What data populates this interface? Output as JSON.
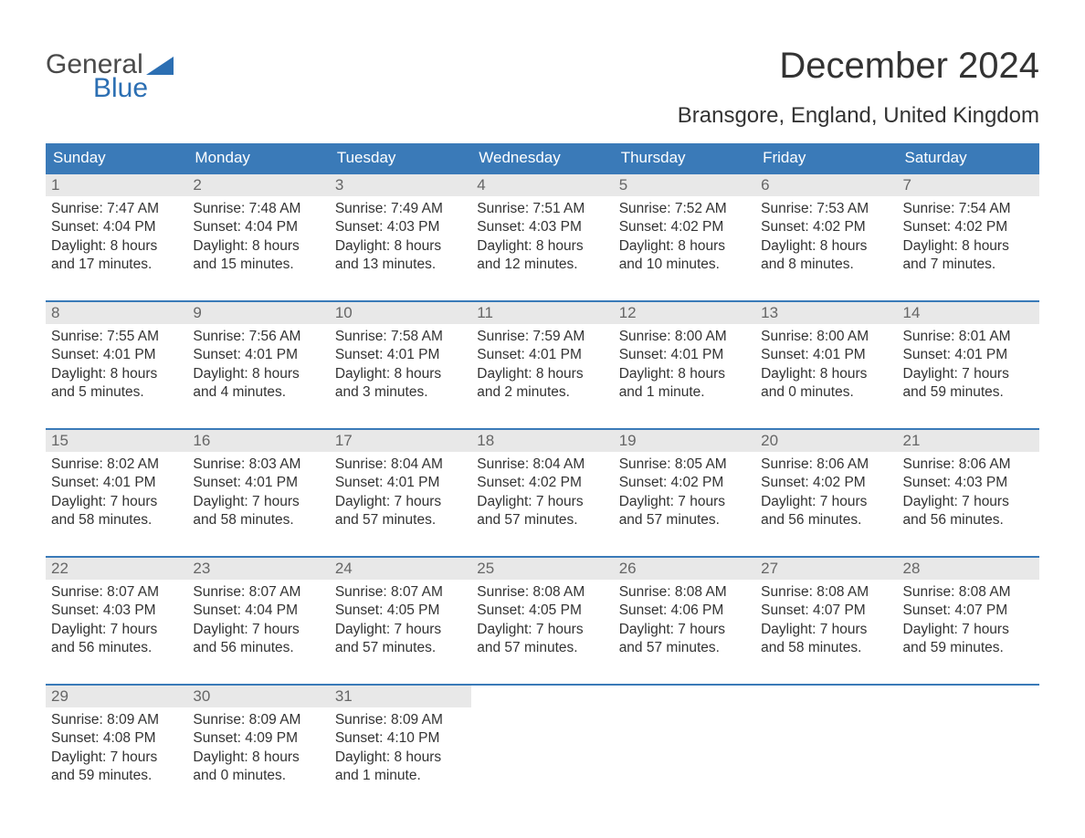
{
  "logo": {
    "word1": "General",
    "word2": "Blue",
    "accent_color": "#2c6fb3",
    "text_color": "#4a4a4a"
  },
  "title": "December 2024",
  "location": "Bransgore, England, United Kingdom",
  "colors": {
    "header_bg": "#3a7ab8",
    "header_text": "#ffffff",
    "daynum_bg": "#e8e8e8",
    "daynum_text": "#666666",
    "body_text": "#333333",
    "row_border": "#3a7ab8",
    "page_bg": "#ffffff"
  },
  "weekdays": [
    "Sunday",
    "Monday",
    "Tuesday",
    "Wednesday",
    "Thursday",
    "Friday",
    "Saturday"
  ],
  "weeks": [
    [
      {
        "n": "1",
        "sr": "Sunrise: 7:47 AM",
        "ss": "Sunset: 4:04 PM",
        "dl": "Daylight: 8 hours and 17 minutes."
      },
      {
        "n": "2",
        "sr": "Sunrise: 7:48 AM",
        "ss": "Sunset: 4:04 PM",
        "dl": "Daylight: 8 hours and 15 minutes."
      },
      {
        "n": "3",
        "sr": "Sunrise: 7:49 AM",
        "ss": "Sunset: 4:03 PM",
        "dl": "Daylight: 8 hours and 13 minutes."
      },
      {
        "n": "4",
        "sr": "Sunrise: 7:51 AM",
        "ss": "Sunset: 4:03 PM",
        "dl": "Daylight: 8 hours and 12 minutes."
      },
      {
        "n": "5",
        "sr": "Sunrise: 7:52 AM",
        "ss": "Sunset: 4:02 PM",
        "dl": "Daylight: 8 hours and 10 minutes."
      },
      {
        "n": "6",
        "sr": "Sunrise: 7:53 AM",
        "ss": "Sunset: 4:02 PM",
        "dl": "Daylight: 8 hours and 8 minutes."
      },
      {
        "n": "7",
        "sr": "Sunrise: 7:54 AM",
        "ss": "Sunset: 4:02 PM",
        "dl": "Daylight: 8 hours and 7 minutes."
      }
    ],
    [
      {
        "n": "8",
        "sr": "Sunrise: 7:55 AM",
        "ss": "Sunset: 4:01 PM",
        "dl": "Daylight: 8 hours and 5 minutes."
      },
      {
        "n": "9",
        "sr": "Sunrise: 7:56 AM",
        "ss": "Sunset: 4:01 PM",
        "dl": "Daylight: 8 hours and 4 minutes."
      },
      {
        "n": "10",
        "sr": "Sunrise: 7:58 AM",
        "ss": "Sunset: 4:01 PM",
        "dl": "Daylight: 8 hours and 3 minutes."
      },
      {
        "n": "11",
        "sr": "Sunrise: 7:59 AM",
        "ss": "Sunset: 4:01 PM",
        "dl": "Daylight: 8 hours and 2 minutes."
      },
      {
        "n": "12",
        "sr": "Sunrise: 8:00 AM",
        "ss": "Sunset: 4:01 PM",
        "dl": "Daylight: 8 hours and 1 minute."
      },
      {
        "n": "13",
        "sr": "Sunrise: 8:00 AM",
        "ss": "Sunset: 4:01 PM",
        "dl": "Daylight: 8 hours and 0 minutes."
      },
      {
        "n": "14",
        "sr": "Sunrise: 8:01 AM",
        "ss": "Sunset: 4:01 PM",
        "dl": "Daylight: 7 hours and 59 minutes."
      }
    ],
    [
      {
        "n": "15",
        "sr": "Sunrise: 8:02 AM",
        "ss": "Sunset: 4:01 PM",
        "dl": "Daylight: 7 hours and 58 minutes."
      },
      {
        "n": "16",
        "sr": "Sunrise: 8:03 AM",
        "ss": "Sunset: 4:01 PM",
        "dl": "Daylight: 7 hours and 58 minutes."
      },
      {
        "n": "17",
        "sr": "Sunrise: 8:04 AM",
        "ss": "Sunset: 4:01 PM",
        "dl": "Daylight: 7 hours and 57 minutes."
      },
      {
        "n": "18",
        "sr": "Sunrise: 8:04 AM",
        "ss": "Sunset: 4:02 PM",
        "dl": "Daylight: 7 hours and 57 minutes."
      },
      {
        "n": "19",
        "sr": "Sunrise: 8:05 AM",
        "ss": "Sunset: 4:02 PM",
        "dl": "Daylight: 7 hours and 57 minutes."
      },
      {
        "n": "20",
        "sr": "Sunrise: 8:06 AM",
        "ss": "Sunset: 4:02 PM",
        "dl": "Daylight: 7 hours and 56 minutes."
      },
      {
        "n": "21",
        "sr": "Sunrise: 8:06 AM",
        "ss": "Sunset: 4:03 PM",
        "dl": "Daylight: 7 hours and 56 minutes."
      }
    ],
    [
      {
        "n": "22",
        "sr": "Sunrise: 8:07 AM",
        "ss": "Sunset: 4:03 PM",
        "dl": "Daylight: 7 hours and 56 minutes."
      },
      {
        "n": "23",
        "sr": "Sunrise: 8:07 AM",
        "ss": "Sunset: 4:04 PM",
        "dl": "Daylight: 7 hours and 56 minutes."
      },
      {
        "n": "24",
        "sr": "Sunrise: 8:07 AM",
        "ss": "Sunset: 4:05 PM",
        "dl": "Daylight: 7 hours and 57 minutes."
      },
      {
        "n": "25",
        "sr": "Sunrise: 8:08 AM",
        "ss": "Sunset: 4:05 PM",
        "dl": "Daylight: 7 hours and 57 minutes."
      },
      {
        "n": "26",
        "sr": "Sunrise: 8:08 AM",
        "ss": "Sunset: 4:06 PM",
        "dl": "Daylight: 7 hours and 57 minutes."
      },
      {
        "n": "27",
        "sr": "Sunrise: 8:08 AM",
        "ss": "Sunset: 4:07 PM",
        "dl": "Daylight: 7 hours and 58 minutes."
      },
      {
        "n": "28",
        "sr": "Sunrise: 8:08 AM",
        "ss": "Sunset: 4:07 PM",
        "dl": "Daylight: 7 hours and 59 minutes."
      }
    ],
    [
      {
        "n": "29",
        "sr": "Sunrise: 8:09 AM",
        "ss": "Sunset: 4:08 PM",
        "dl": "Daylight: 7 hours and 59 minutes."
      },
      {
        "n": "30",
        "sr": "Sunrise: 8:09 AM",
        "ss": "Sunset: 4:09 PM",
        "dl": "Daylight: 8 hours and 0 minutes."
      },
      {
        "n": "31",
        "sr": "Sunrise: 8:09 AM",
        "ss": "Sunset: 4:10 PM",
        "dl": "Daylight: 8 hours and 1 minute."
      },
      null,
      null,
      null,
      null
    ]
  ]
}
